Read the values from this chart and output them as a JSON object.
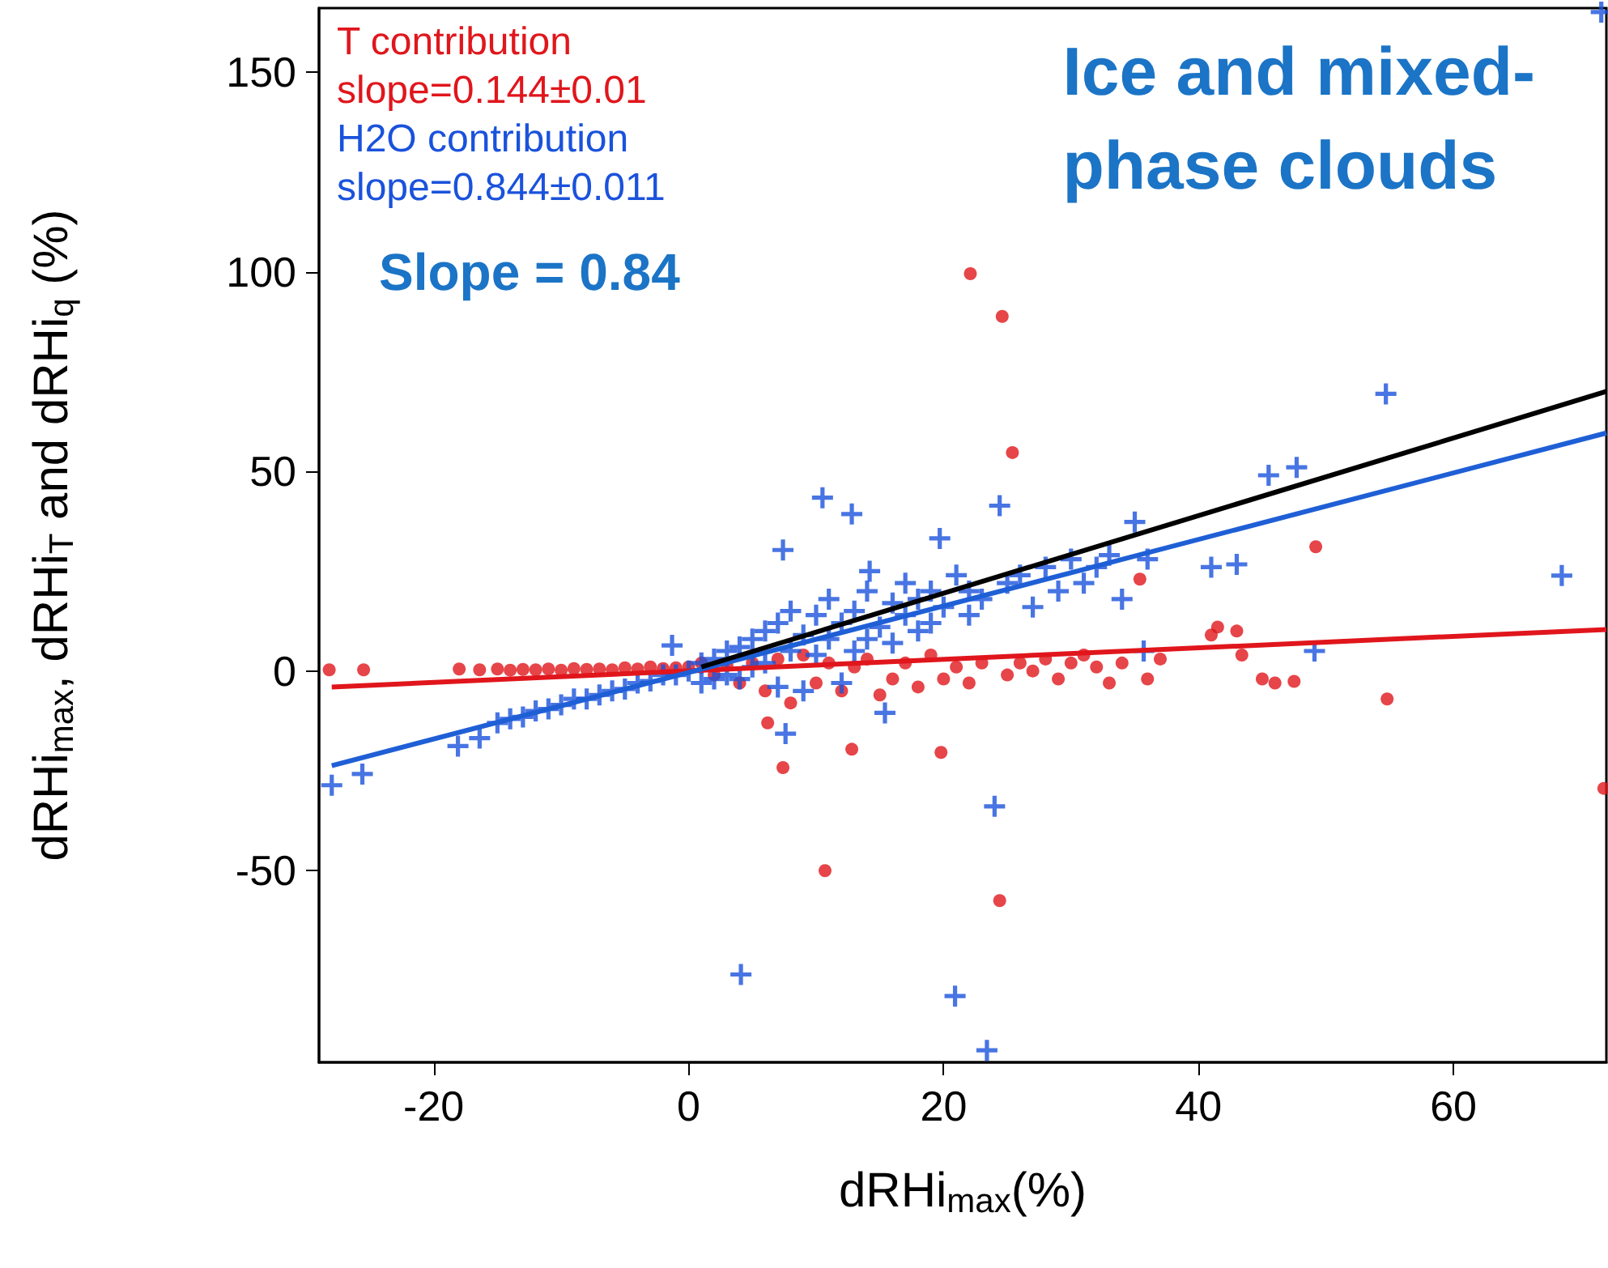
{
  "chart_data": {
    "type": "scatter",
    "title": "Ice and mixed-phase clouds",
    "xlabel": "dRHi$_{max}$(%)",
    "ylabel": "dRHi$_{max}$, dRHi$_{T}$ and dRHi$_{q}$ (%)",
    "annotations": [
      "slope=0.144±0.01",
      "slope=0.844±0.011",
      "Slope = 0.84"
    ],
    "xlim": [
      -29,
      72
    ],
    "ylim": [
      -98,
      166
    ],
    "xticks": [
      -20,
      0,
      20,
      40,
      60
    ],
    "yticks": [
      -50,
      0,
      50,
      100,
      150
    ],
    "grid": false,
    "legend": false,
    "series": [
      {
        "name": "T contribution",
        "color": "#e0161c",
        "marker": "circle",
        "x": [
          -28.2,
          -25.5,
          -18,
          -16.4,
          -15,
          -14,
          -13,
          -12,
          -11,
          -10,
          -9,
          -8,
          -7,
          -6,
          -5,
          -4,
          -3,
          -2,
          -1,
          0,
          1,
          2,
          3,
          4,
          5,
          6,
          6.2,
          7,
          7.4,
          8,
          9,
          10,
          10.7,
          11,
          12,
          12.8,
          13,
          14,
          15,
          16,
          17,
          18,
          19,
          19.8,
          20,
          21,
          22.1,
          22,
          23,
          24.4,
          24.6,
          25.4,
          25,
          26,
          27,
          28,
          29,
          30,
          31,
          32,
          33,
          34,
          35.4,
          36,
          37,
          41,
          41.5,
          43,
          43.4,
          45,
          46,
          47.5,
          49.2,
          54.8,
          71.8
        ],
        "values": [
          0.3,
          0.3,
          0.5,
          0.3,
          0.5,
          0.2,
          0.4,
          0.3,
          0.5,
          0.2,
          0.6,
          0.4,
          0.5,
          0.3,
          0.8,
          0.5,
          1,
          0.6,
          0.8,
          1,
          2,
          -1,
          1.5,
          -3,
          2,
          -5,
          -13,
          3,
          -24.2,
          -8,
          4,
          -3,
          -50,
          2,
          -5,
          -19.6,
          1,
          3,
          -6,
          -2,
          2,
          -4,
          4,
          -20.4,
          -2,
          1,
          99.5,
          -3,
          2,
          -57.5,
          88.8,
          54.7,
          -1,
          2,
          0,
          3,
          -2,
          2,
          4,
          1,
          -3,
          2,
          23,
          -2,
          3,
          9,
          11,
          10,
          4,
          -2,
          -3,
          -2.6,
          31.1,
          -7,
          -29.4
        ]
      },
      {
        "name": "H2O contribution",
        "color": "#1a52dc",
        "marker": "cross",
        "x": [
          -28,
          -25.6,
          -18.1,
          -16.4,
          -15,
          -14,
          -13,
          -12,
          -11,
          -10,
          -9,
          -8,
          -7,
          -6,
          -5,
          -4,
          -3,
          -2,
          -1.3,
          -1,
          0,
          1,
          1,
          2,
          2,
          3,
          3,
          4,
          4,
          4.1,
          5,
          5,
          6,
          6,
          7,
          7,
          7.4,
          7.6,
          8,
          8,
          9,
          9,
          10,
          10,
          10.5,
          11,
          11,
          12,
          12,
          12.8,
          13,
          13,
          14,
          14,
          14.2,
          15,
          15.4,
          16,
          16,
          17,
          17,
          18,
          18,
          19,
          19,
          19.7,
          20,
          20.9,
          21,
          22,
          22,
          23,
          23.4,
          24,
          24.4,
          25,
          26,
          27,
          28,
          29,
          30,
          31,
          32,
          33,
          34,
          35,
          35.7,
          36,
          41,
          43,
          45.5,
          47.7,
          49.1,
          54.7,
          68.5,
          71.6
        ],
        "values": [
          -28.6,
          -25.8,
          -18.8,
          -16.8,
          -13,
          -12,
          -11.5,
          -10,
          -9.5,
          -8.5,
          -7,
          -7,
          -6,
          -5,
          -4.5,
          -3,
          -2.5,
          -1,
          6.4,
          -1,
          0,
          2,
          -3,
          3,
          -2,
          5,
          -1,
          6,
          -2,
          -76,
          8,
          1,
          10,
          2,
          12,
          -4,
          30.3,
          -15.7,
          15,
          5,
          9,
          -5,
          14,
          4,
          43.4,
          8,
          18,
          12,
          -3,
          39.3,
          15,
          5,
          20,
          8,
          25,
          11,
          -10.5,
          17,
          7,
          14,
          22,
          10,
          18,
          20,
          12,
          33.2,
          16,
          -81.4,
          24,
          14,
          20,
          18,
          -95,
          -33.9,
          41.4,
          22,
          24,
          16,
          26,
          20,
          28,
          22,
          26,
          29,
          18,
          37.3,
          5,
          28,
          26,
          26.7,
          49,
          51,
          5,
          69.4,
          23.9,
          165
        ]
      },
      {
        "type": "line",
        "color": "#e0161c",
        "x": [
          -28,
          72
        ],
        "values": [
          -4,
          10.4
        ]
      },
      {
        "type": "line",
        "color": "#1f5fd6",
        "x": [
          -28,
          72
        ],
        "values": [
          -23.7,
          59.6
        ]
      },
      {
        "type": "line",
        "color": "#000000",
        "x": [
          1,
          72
        ],
        "values": [
          1,
          70
        ]
      }
    ]
  }
}
